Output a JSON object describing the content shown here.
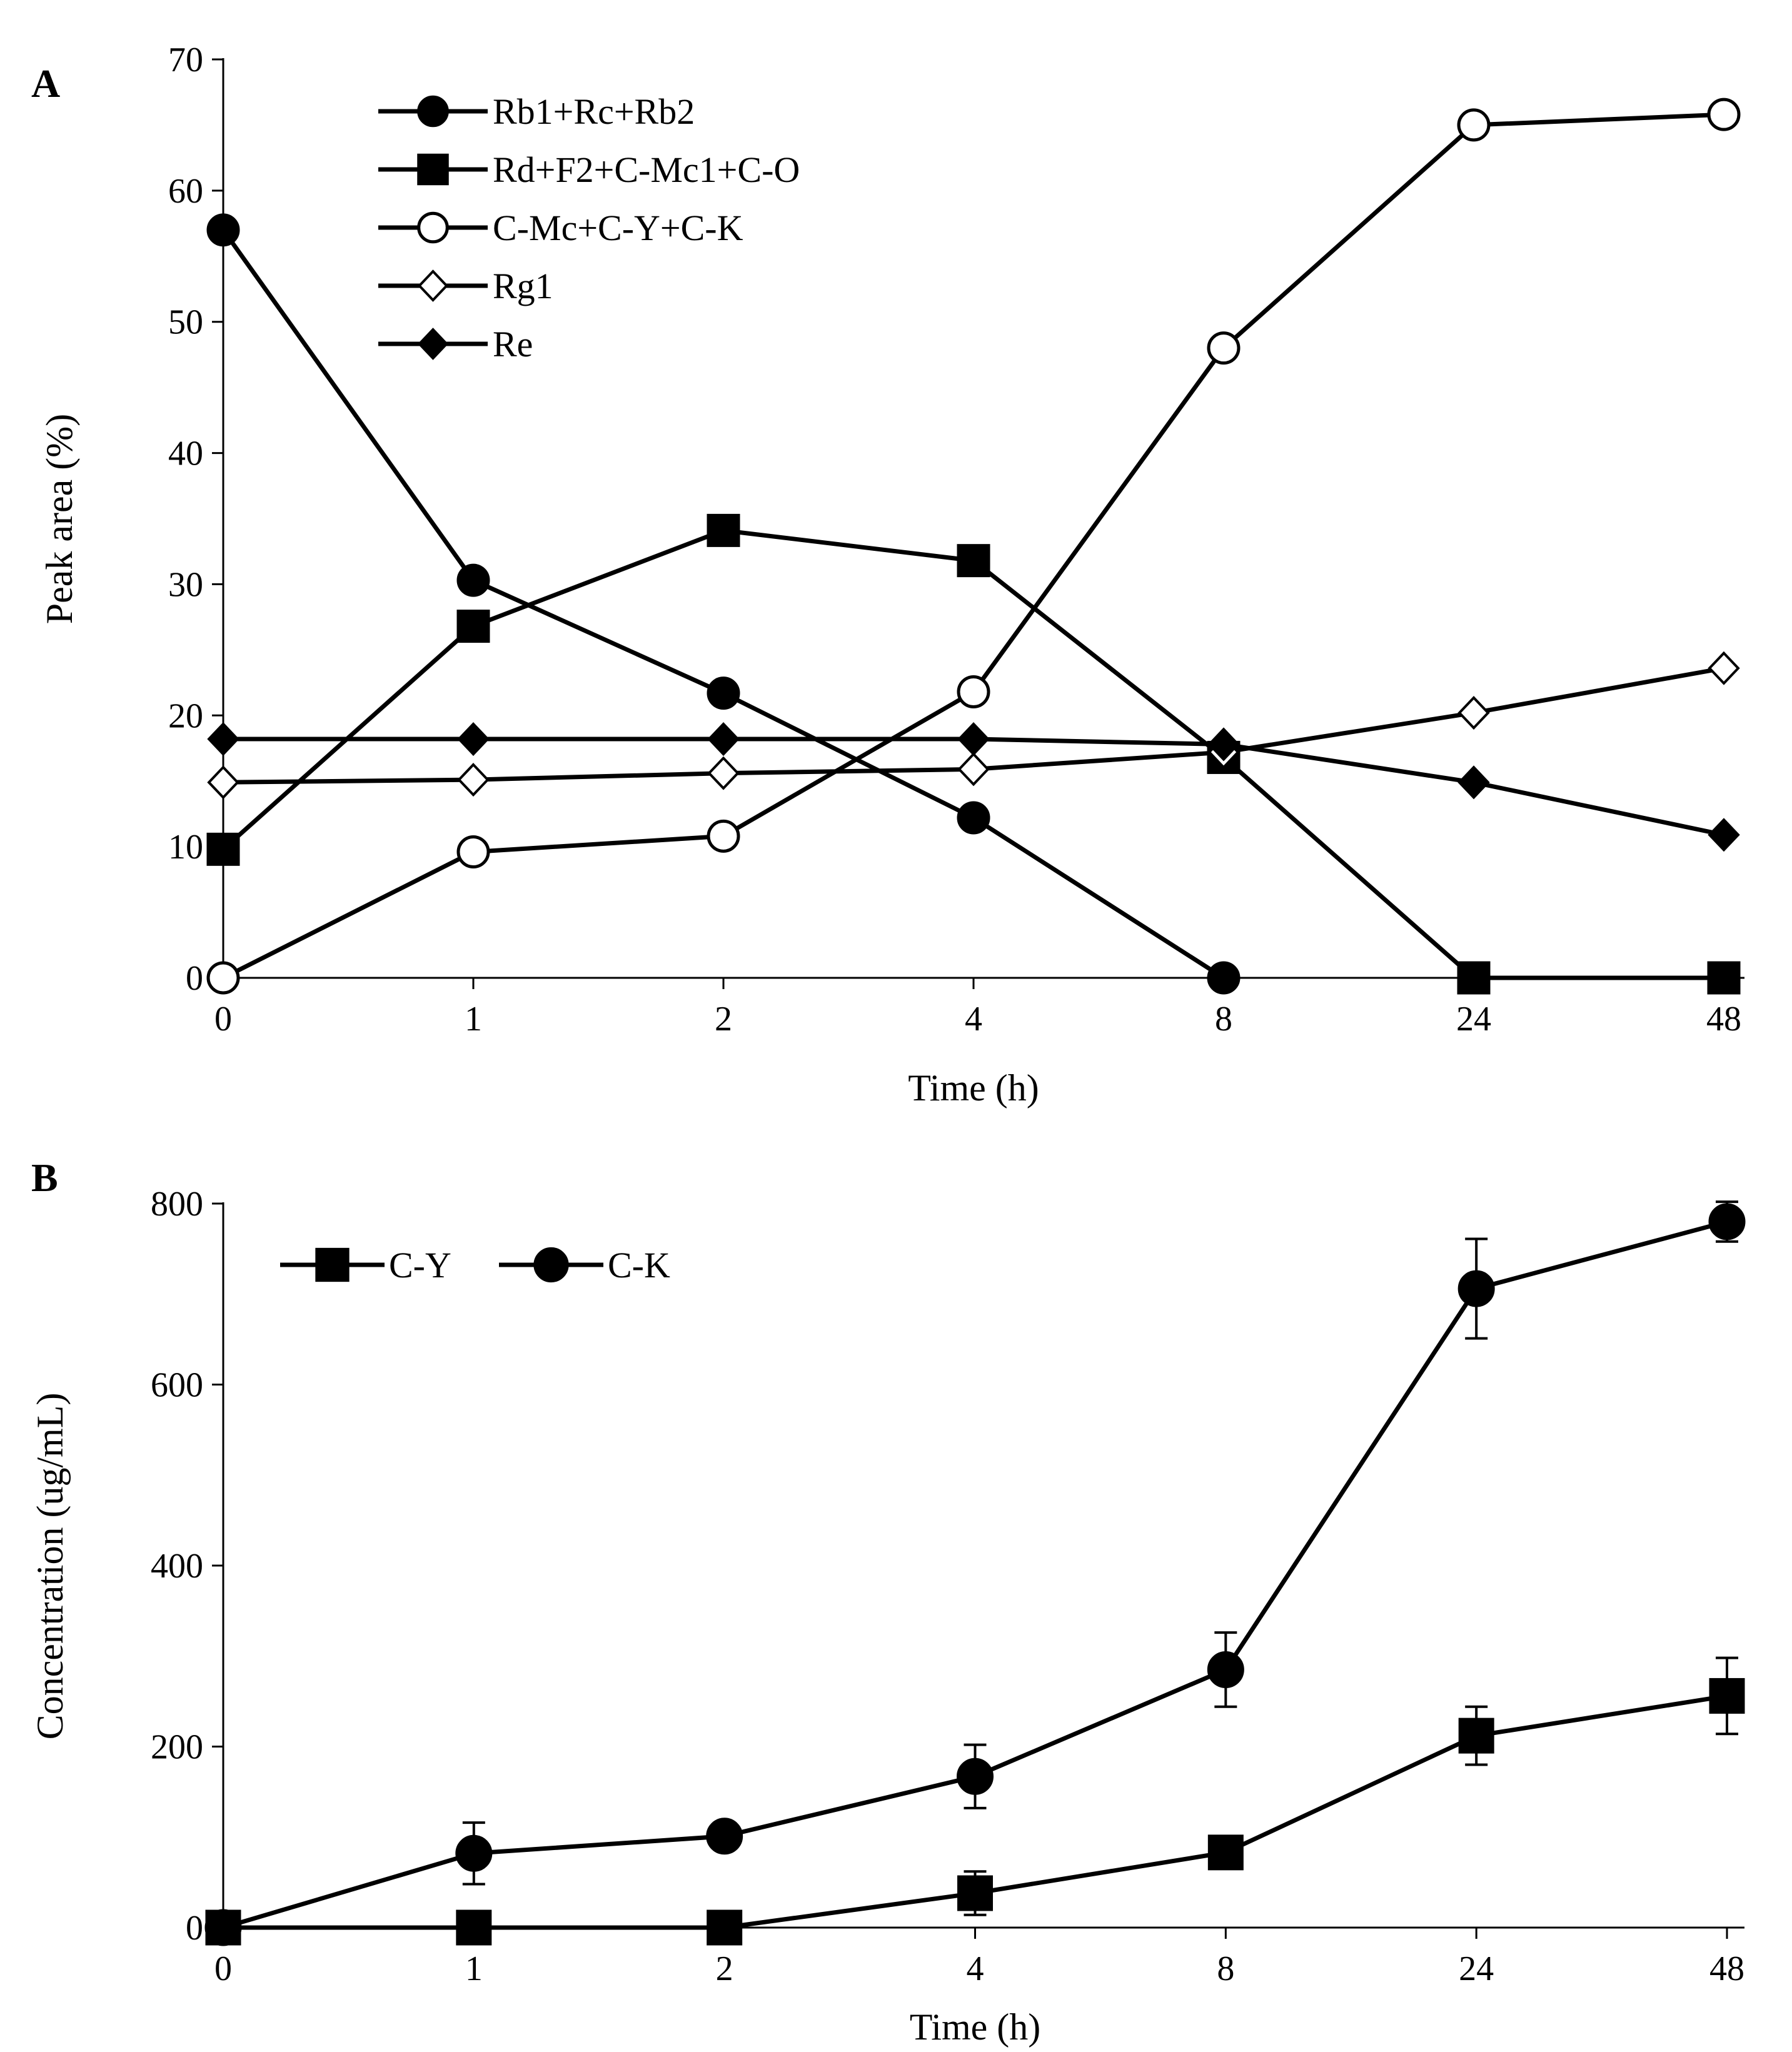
{
  "colors": {
    "ink": "#000000",
    "background": "#ffffff"
  },
  "panels": {
    "a_label": "A",
    "b_label": "B"
  },
  "chart_data": [
    {
      "type": "line",
      "panel": "A",
      "title": "",
      "xlabel": "Time (h)",
      "ylabel": "Peak area (%)",
      "categories": [
        "0",
        "1",
        "2",
        "4",
        "8",
        "24",
        "48"
      ],
      "ylim": [
        0,
        70
      ],
      "yticks": [
        "0",
        "10",
        "20",
        "30",
        "40",
        "50",
        "60",
        "70"
      ],
      "grid": false,
      "legend_position": "top-left",
      "series": [
        {
          "name": "Rb1+Rc+Rb2",
          "marker": "circle-filled",
          "values": [
            57,
            30.3,
            21.7,
            12.2,
            0,
            null,
            null
          ]
        },
        {
          "name": "Rd+F2+C-Mc1+C-O",
          "marker": "square-filled",
          "values": [
            9.8,
            26.8,
            34.1,
            31.8,
            16.8,
            0,
            0
          ]
        },
        {
          "name": "C-Mc+C-Y+C-K",
          "marker": "circle-open",
          "values": [
            0,
            9.6,
            10.8,
            21.8,
            48,
            65,
            65.8
          ]
        },
        {
          "name": "Rg1",
          "marker": "diamond-open",
          "values": [
            14.9,
            15.1,
            15.6,
            15.9,
            17.2,
            20.2,
            23.6
          ]
        },
        {
          "name": "Re",
          "marker": "diamond-filled",
          "values": [
            18.2,
            18.2,
            18.2,
            18.2,
            17.8,
            14.9,
            10.9
          ]
        }
      ]
    },
    {
      "type": "line",
      "panel": "B",
      "title": "",
      "xlabel": "Time (h)",
      "ylabel": "Concentration (ug/mL)",
      "categories": [
        "0",
        "1",
        "2",
        "4",
        "8",
        "24",
        "48"
      ],
      "ylim": [
        0,
        800
      ],
      "yticks": [
        "0",
        "200",
        "400",
        "600",
        "800"
      ],
      "grid": false,
      "legend_position": "top-left",
      "series": [
        {
          "name": "C-Y",
          "marker": "square-filled",
          "values": [
            0,
            0,
            0,
            38,
            83,
            212,
            256
          ],
          "errors": [
            0,
            0,
            0,
            24,
            0,
            32,
            42
          ]
        },
        {
          "name": "C-K",
          "marker": "circle-filled",
          "values": [
            0,
            82,
            101,
            167,
            285,
            706,
            780
          ],
          "errors": [
            0,
            34,
            0,
            35,
            41,
            55,
            22
          ]
        }
      ]
    }
  ]
}
